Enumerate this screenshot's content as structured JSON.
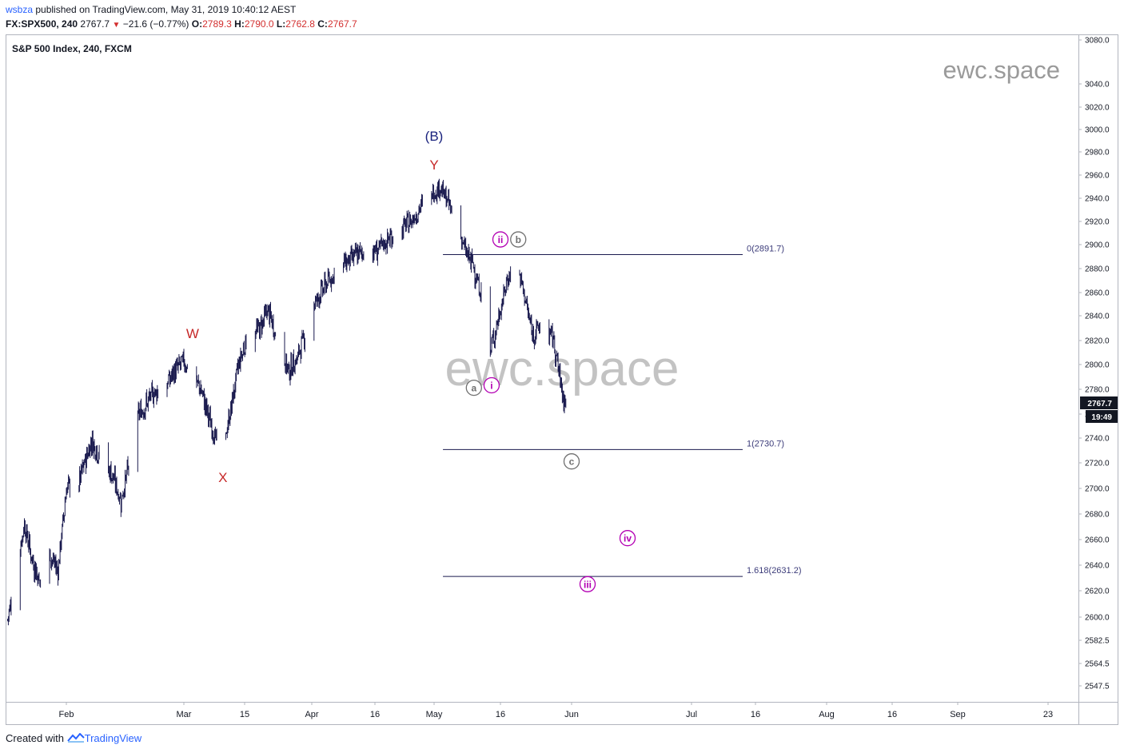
{
  "header": {
    "user": "wsbza",
    "published": "published on TradingView.com, May 31, 2019 10:40:12 AEST",
    "symbol": "FX:SPX500, 240",
    "last": "2767.7",
    "change": "−21.6 (−0.77%)",
    "o_label": "O:",
    "o": "2789.3",
    "h_label": "H:",
    "h": "2790.0",
    "l_label": "L:",
    "l": "2762.8",
    "c_label": "C:",
    "c": "2767.7"
  },
  "chart_title": "S&P 500 Index, 240, FXCM",
  "watermarks": [
    "ewc.space",
    "ewc.space"
  ],
  "footer": {
    "created_with": "Created with",
    "brand": "TradingView"
  },
  "price_badge": "2767.7",
  "countdown": "19:49",
  "colors": {
    "candle": "#1a1a4e",
    "wave_red": "#c62828",
    "wave_blue": "#1a237e",
    "magenta": "#b300b3",
    "gray": "#707070",
    "fib_line": "#1a1a4e",
    "badge_bg": "#131722"
  },
  "chart_data": {
    "type": "candlestick",
    "title": "S&P 500 Index, 240, FXCM",
    "x_tick_labels": [
      "Feb",
      "Mar",
      "15",
      "Apr",
      "16",
      "May",
      "16",
      "Jun",
      "Jul",
      "16",
      "Aug",
      "16",
      "Sep",
      "23"
    ],
    "y_tick_labels": [
      "3080.0",
      "3040.0",
      "3020.0",
      "3000.0",
      "2980.0",
      "2960.0",
      "2940.0",
      "2920.0",
      "2900.0",
      "2880.0",
      "2860.0",
      "2840.0",
      "2820.0",
      "2800.0",
      "2780.0",
      "2760.0",
      "2740.0",
      "2720.0",
      "2700.0",
      "2680.0",
      "2660.0",
      "2640.0",
      "2620.0",
      "2600.0",
      "2582.5",
      "2564.5",
      "2547.5"
    ],
    "ylim": [
      2535,
      3085
    ],
    "series_close": [
      [
        "2019-01-18",
        2598
      ],
      [
        "2019-01-22",
        2672
      ],
      [
        "2019-01-24",
        2642
      ],
      [
        "2019-01-26",
        2625
      ],
      [
        "2019-01-28",
        2648
      ],
      [
        "2019-01-30",
        2636
      ],
      [
        "2019-02-01",
        2700
      ],
      [
        "2019-02-04",
        2705
      ],
      [
        "2019-02-07",
        2738
      ],
      [
        "2019-02-09",
        2725
      ],
      [
        "2019-02-12",
        2710
      ],
      [
        "2019-02-14",
        2690
      ],
      [
        "2019-02-16",
        2720
      ],
      [
        "2019-02-18",
        2758
      ],
      [
        "2019-02-22",
        2778
      ],
      [
        "2019-02-24",
        2780
      ],
      [
        "2019-02-27",
        2795
      ],
      [
        "2019-02-28",
        2800
      ],
      [
        "2019-03-01",
        2803
      ],
      [
        "2019-03-03",
        2790
      ],
      [
        "2019-03-05",
        2780
      ],
      [
        "2019-03-08",
        2745
      ],
      [
        "2019-03-10",
        2725
      ],
      [
        "2019-03-12",
        2760
      ],
      [
        "2019-03-14",
        2800
      ],
      [
        "2019-03-16",
        2822
      ],
      [
        "2019-03-19",
        2830
      ],
      [
        "2019-03-21",
        2845
      ],
      [
        "2019-03-24",
        2812
      ],
      [
        "2019-03-26",
        2795
      ],
      [
        "2019-03-28",
        2805
      ],
      [
        "2019-04-01",
        2850
      ],
      [
        "2019-04-04",
        2868
      ],
      [
        "2019-04-08",
        2885
      ],
      [
        "2019-04-12",
        2893
      ],
      [
        "2019-04-16",
        2895
      ],
      [
        "2019-04-20",
        2908
      ],
      [
        "2019-04-24",
        2920
      ],
      [
        "2019-04-28",
        2940
      ],
      [
        "2019-05-01",
        2950
      ],
      [
        "2019-05-03",
        2936
      ],
      [
        "2019-05-05",
        2920
      ],
      [
        "2019-05-07",
        2895
      ],
      [
        "2019-05-09",
        2882
      ],
      [
        "2019-05-11",
        2855
      ],
      [
        "2019-05-13",
        2812
      ],
      [
        "2019-05-15",
        2838
      ],
      [
        "2019-05-17",
        2870
      ],
      [
        "2019-05-19",
        2886
      ],
      [
        "2019-05-21",
        2860
      ],
      [
        "2019-05-23",
        2825
      ],
      [
        "2019-05-25",
        2832
      ],
      [
        "2019-05-28",
        2822
      ],
      [
        "2019-05-30",
        2780
      ],
      [
        "2019-05-31",
        2767.7
      ]
    ],
    "fibonacci_levels": [
      {
        "ratio": "0",
        "price": 2891.7,
        "label": "0(2891.7)"
      },
      {
        "ratio": "1",
        "price": 2730.7,
        "label": "1(2730.7)"
      },
      {
        "ratio": "1.618",
        "price": 2631.2,
        "label": "1.618(2631.2)"
      }
    ],
    "wave_labels": [
      {
        "text": "W",
        "style": "red"
      },
      {
        "text": "X",
        "style": "red"
      },
      {
        "text": "Y",
        "style": "red"
      },
      {
        "text": "(B)",
        "style": "blue"
      },
      {
        "text": "ii",
        "style": "magenta-circle"
      },
      {
        "text": "b",
        "style": "gray-circle"
      },
      {
        "text": "a",
        "style": "gray-circle"
      },
      {
        "text": "i",
        "style": "magenta-circle"
      },
      {
        "text": "c",
        "style": "gray-circle"
      },
      {
        "text": "iv",
        "style": "magenta-circle"
      },
      {
        "text": "iii",
        "style": "magenta-circle"
      }
    ]
  }
}
